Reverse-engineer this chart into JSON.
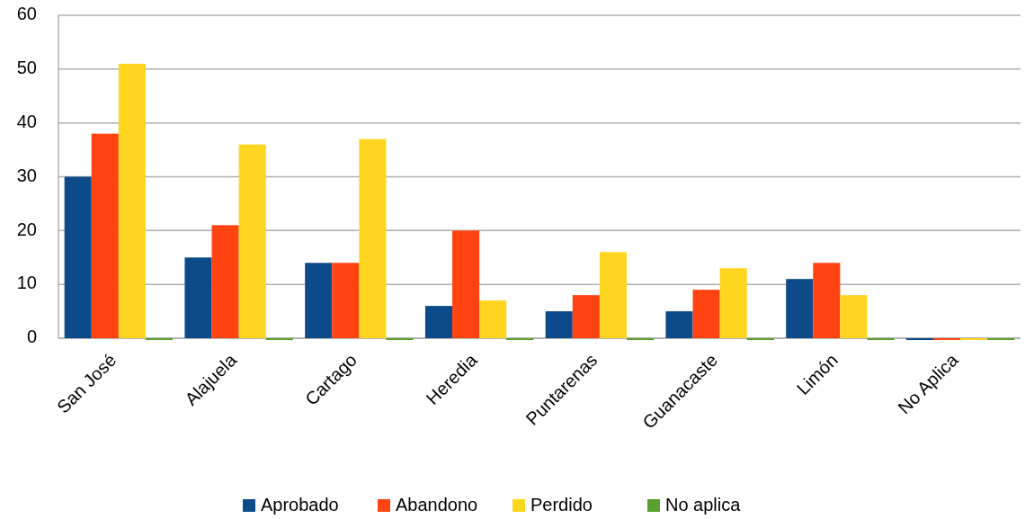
{
  "chart_data": {
    "type": "bar",
    "categories": [
      "San José",
      "Alajuela",
      "Cartago",
      "Heredia",
      "Puntarenas",
      "Guanacaste",
      "Limón",
      "No Aplica"
    ],
    "series": [
      {
        "name": "Aprobado",
        "color": "#0d4a8a",
        "values": [
          30,
          15,
          14,
          6,
          5,
          5,
          11,
          0
        ]
      },
      {
        "name": "Abandono",
        "color": "#ff4411",
        "values": [
          38,
          21,
          14,
          20,
          8,
          9,
          14,
          0
        ]
      },
      {
        "name": "Perdido",
        "color": "#ffd61f",
        "values": [
          51,
          36,
          37,
          7,
          16,
          13,
          8,
          0
        ]
      },
      {
        "name": "No aplica",
        "color": "#5aa02c",
        "values": [
          0,
          0,
          0,
          0,
          0,
          0,
          0,
          0
        ]
      }
    ],
    "ylim": [
      0,
      60
    ],
    "yticks": [
      0,
      10,
      20,
      30,
      40,
      50,
      60
    ],
    "grid": "y",
    "legend": "bottom"
  }
}
